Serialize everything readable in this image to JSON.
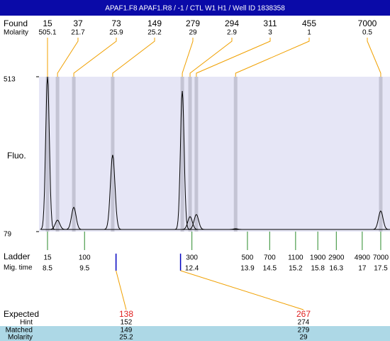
{
  "chart_data": {
    "type": "electropherogram",
    "title": "APAF1.F8  APAF1.R8 / -1 / CTL W1 H1 / Well ID 1838358",
    "ylabel": "Fluo.",
    "ylim": [
      79,
      513
    ],
    "yticks": [
      79,
      513
    ],
    "xlim": [
      8.27,
      17.75
    ],
    "found": {
      "label": "Found",
      "molarity_label": "Molarity",
      "sizes": [
        15,
        37,
        73,
        149,
        279,
        294,
        311,
        455,
        7000
      ],
      "molarity": [
        505.1,
        21.7,
        25.9,
        25.2,
        29,
        2.9,
        3,
        1,
        0.5
      ],
      "mig_time": [
        8.5,
        8.77,
        9.21,
        10.26,
        12.14,
        12.35,
        12.52,
        13.58,
        17.5
      ],
      "heights": [
        513,
        111,
        147,
        294,
        473,
        121,
        127,
        87,
        137
      ]
    },
    "ladder": {
      "label": "Ladder",
      "mig_label": "Mig. time",
      "sizes": [
        15,
        100,
        300,
        500,
        700,
        1100,
        1900,
        2900,
        4900,
        7000
      ],
      "mig_time": [
        8.5,
        9.5,
        12.4,
        13.9,
        14.5,
        15.2,
        15.8,
        16.3,
        17,
        17.5
      ]
    },
    "expected": {
      "label": "Expected",
      "hint_label": "Hint",
      "matched_label": "Matched",
      "molarity_label": "Molarity",
      "sizes": [
        138,
        267
      ],
      "hint": [
        152,
        274
      ],
      "matched": [
        149,
        279
      ],
      "molarity": [
        25.2,
        29
      ]
    }
  }
}
